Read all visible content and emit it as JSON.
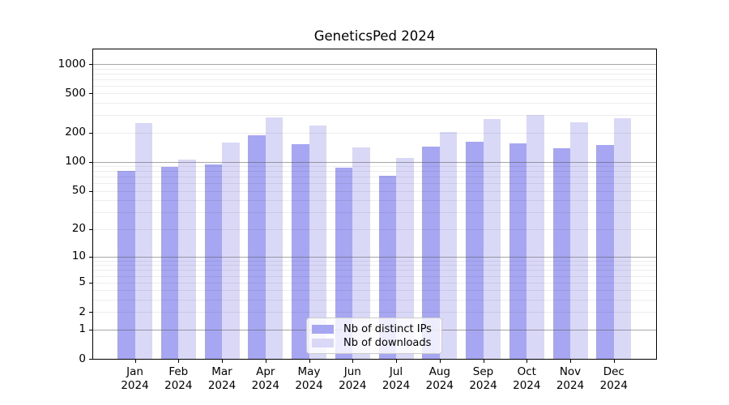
{
  "title": "GeneticsPed 2024",
  "chart_data": {
    "type": "bar",
    "title": "GeneticsPed 2024",
    "categories": [
      "Jan 2024",
      "Feb 2024",
      "Mar 2024",
      "Apr 2024",
      "May 2024",
      "Jun 2024",
      "Jul 2024",
      "Aug 2024",
      "Sep 2024",
      "Oct 2024",
      "Nov 2024",
      "Dec 2024"
    ],
    "series": [
      {
        "name": "Nb of distinct IPs",
        "color": "#a6a6f3",
        "values": [
          80,
          89,
          95,
          188,
          151,
          87,
          72,
          143,
          161,
          156,
          137,
          150
        ]
      },
      {
        "name": "Nb of downloads",
        "color": "#d9d9f7",
        "values": [
          251,
          105,
          159,
          285,
          235,
          140,
          110,
          202,
          273,
          304,
          255,
          280
        ]
      }
    ],
    "xlabel": "",
    "ylabel": "",
    "y_axis": {
      "scale": "log10(value+1)",
      "tick_values": [
        0,
        1,
        2,
        5,
        10,
        20,
        50,
        100,
        200,
        500,
        1000
      ],
      "major_grid_values": [
        1,
        10,
        100,
        1000
      ],
      "minor_grid_values": [
        2,
        3,
        4,
        5,
        6,
        7,
        8,
        9,
        20,
        30,
        40,
        50,
        60,
        70,
        80,
        90,
        200,
        300,
        400,
        500,
        600,
        700,
        800,
        900
      ]
    },
    "legend_position": "lower center",
    "grid": true
  },
  "colors": {
    "bar_distinct_ips": "#a6a6f3",
    "bar_downloads": "#d9d9f7",
    "major_grid": "rgba(85,85,85,0.52)",
    "minor_grid": "rgba(0,0,0,0.07)",
    "spine": "#000000",
    "background": "#ffffff"
  }
}
